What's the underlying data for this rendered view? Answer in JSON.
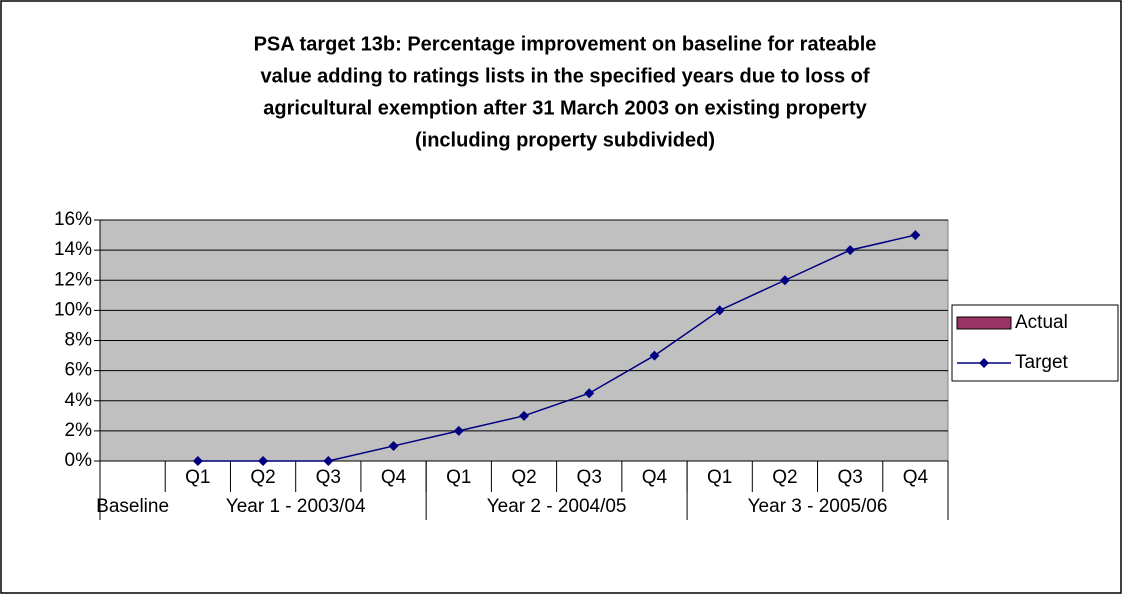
{
  "chart_data": {
    "type": "line",
    "title": [
      "PSA target 13b: Percentage improvement on baseline for rateable",
      "value adding to ratings lists in the specified years due to loss of",
      "agricultural exemption after 31 March 2003 on existing property",
      "(including property subdivided)"
    ],
    "categories": [
      null,
      "Q1",
      "Q2",
      "Q3",
      "Q4",
      "Q1",
      "Q2",
      "Q3",
      "Q4",
      "Q1",
      "Q2",
      "Q3",
      "Q4"
    ],
    "groups": [
      {
        "label": "Baseline",
        "categories": 1
      },
      {
        "label": "Year 1 - 2003/04",
        "categories": 4
      },
      {
        "label": "Year 2 - 2004/05",
        "categories": 4
      },
      {
        "label": "Year 3 - 2005/06",
        "categories": 4
      }
    ],
    "series": [
      {
        "name": "Actual",
        "color": "#993366",
        "kind": "bar",
        "values": [
          null,
          null,
          null,
          null,
          null,
          null,
          null,
          null,
          null,
          null,
          null,
          null,
          null
        ]
      },
      {
        "name": "Target",
        "color": "#000080",
        "kind": "line",
        "values": [
          null,
          0,
          0,
          0,
          1,
          2,
          3,
          4.5,
          7,
          10,
          12,
          14,
          15
        ]
      }
    ],
    "ylim": [
      0,
      16
    ],
    "yticks": [
      {
        "value": 0,
        "label": "0%"
      },
      {
        "value": 2,
        "label": "2%"
      },
      {
        "value": 4,
        "label": "4%"
      },
      {
        "value": 6,
        "label": "6%"
      },
      {
        "value": 8,
        "label": "8%"
      },
      {
        "value": 10,
        "label": "10%"
      },
      {
        "value": 12,
        "label": "12%"
      },
      {
        "value": 14,
        "label": "14%"
      },
      {
        "value": 16,
        "label": "16%"
      }
    ],
    "grid": true,
    "legend": "right"
  }
}
